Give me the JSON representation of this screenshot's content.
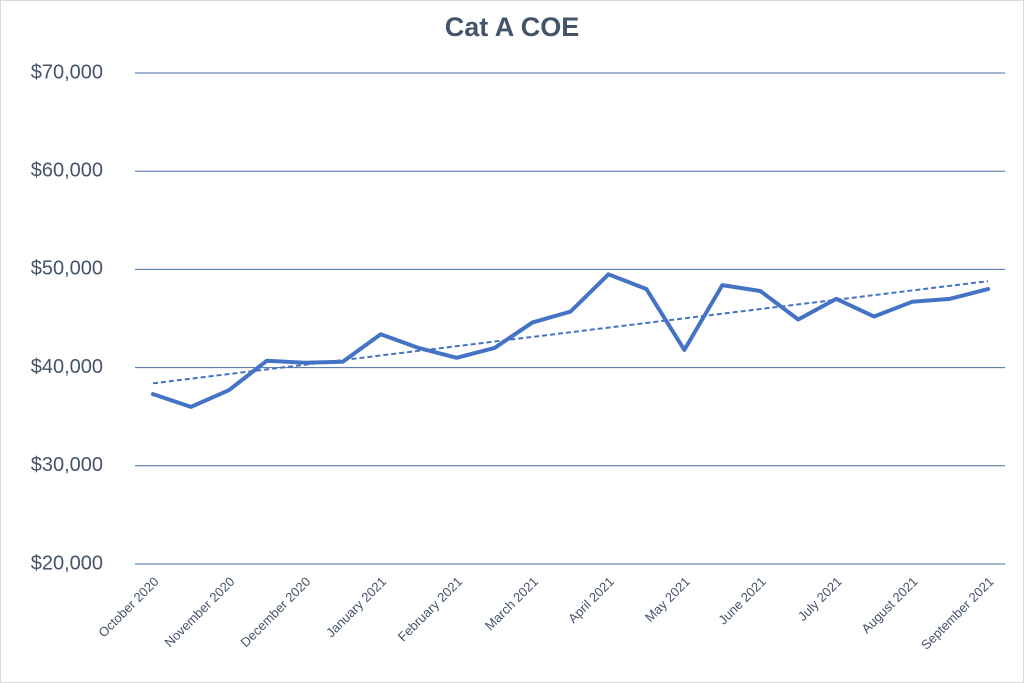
{
  "chart_data": {
    "type": "line",
    "title": "Cat A COE",
    "categories": [
      "October 2020",
      null,
      "November 2020",
      null,
      "December 2020",
      null,
      "January 2021",
      null,
      "February 2021",
      null,
      "March 2021",
      null,
      "April 2021",
      null,
      "May 2021",
      null,
      "June 2021",
      null,
      "July 2021",
      null,
      "August 2021",
      null,
      "September 2021"
    ],
    "series": [
      {
        "color": "#4472c4",
        "values": [
          37300,
          36000,
          37700,
          40700,
          40500,
          40600,
          43400,
          42000,
          41000,
          42000,
          44600,
          45700,
          49500,
          48000,
          41800,
          48400,
          47800,
          44900,
          47000,
          45200,
          46700,
          47000,
          48000
        ]
      }
    ],
    "trendline": {
      "values": [
        38400,
        48800
      ],
      "color": "#4472c4",
      "style": "dashed"
    },
    "ylim": [
      20000,
      70000
    ],
    "yticks": [
      {
        "value": 20000,
        "label": "$20,000"
      },
      {
        "value": 30000,
        "label": "$30,000"
      },
      {
        "value": 40000,
        "label": "$40,000"
      },
      {
        "value": 50000,
        "label": "$50,000"
      },
      {
        "value": 60000,
        "label": "$60,000"
      },
      {
        "value": 70000,
        "label": "$70,000"
      }
    ],
    "grid": true,
    "grid_color": "#4a6fa5"
  }
}
